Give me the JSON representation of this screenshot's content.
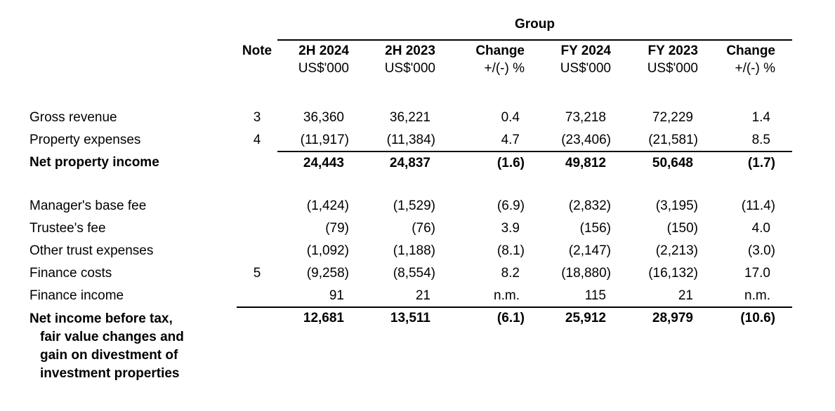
{
  "report": {
    "group_header": "Group",
    "columns": {
      "note": "Note",
      "periods": [
        {
          "label": "2H 2024",
          "unit": "US$'000"
        },
        {
          "label": "2H 2023",
          "unit": "US$'000"
        },
        {
          "label": "Change",
          "unit": "+/(-) %"
        },
        {
          "label": "FY 2024",
          "unit": "US$'000"
        },
        {
          "label": "FY 2023",
          "unit": "US$'000"
        },
        {
          "label": "Change",
          "unit": "+/(-) %"
        }
      ]
    },
    "rows": [
      {
        "label": "Gross revenue",
        "note": "3",
        "values": [
          "36,360",
          "36,221",
          "0.4",
          "73,218",
          "72,229",
          "1.4"
        ]
      },
      {
        "label": "Property expenses",
        "note": "4",
        "values": [
          "(11,917)",
          "(11,384)",
          "4.7",
          "(23,406)",
          "(21,581)",
          "8.5"
        ]
      },
      {
        "label": "Net property income",
        "note": "",
        "values": [
          "24,443",
          "24,837",
          "(1.6)",
          "49,812",
          "50,648",
          "(1.7)"
        ]
      },
      {
        "label": "Manager's base fee",
        "note": "",
        "values": [
          "(1,424)",
          "(1,529)",
          "(6.9)",
          "(2,832)",
          "(3,195)",
          "(11.4)"
        ]
      },
      {
        "label": "Trustee's fee",
        "note": "",
        "values": [
          "(79)",
          "(76)",
          "3.9",
          "(156)",
          "(150)",
          "4.0"
        ]
      },
      {
        "label": "Other trust expenses",
        "note": "",
        "values": [
          "(1,092)",
          "(1,188)",
          "(8.1)",
          "(2,147)",
          "(2,213)",
          "(3.0)"
        ]
      },
      {
        "label": "Finance costs",
        "note": "5",
        "values": [
          "(9,258)",
          "(8,554)",
          "8.2",
          "(18,880)",
          "(16,132)",
          "17.0"
        ]
      },
      {
        "label": "Finance income",
        "note": "",
        "values": [
          "91",
          "21",
          "n.m.",
          "115",
          "21",
          "n.m."
        ]
      },
      {
        "label_lines": [
          "Net income before tax,",
          "fair value changes and",
          "gain on divestment of",
          "investment properties"
        ],
        "note": "",
        "values": [
          "12,681",
          "13,511",
          "(6.1)",
          "25,912",
          "28,979",
          "(10.6)"
        ]
      }
    ],
    "text_color": "#000000",
    "rule_color": "#000000"
  }
}
